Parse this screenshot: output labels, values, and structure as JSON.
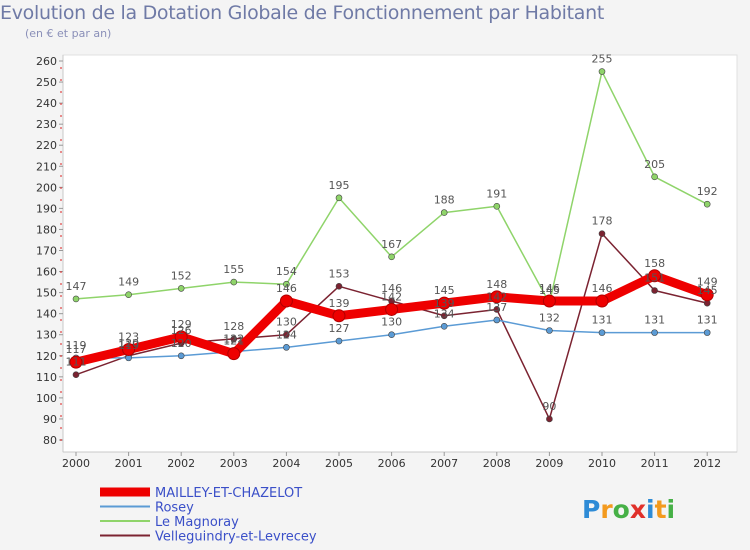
{
  "chart_data": {
    "type": "line",
    "title": "Evolution de la Dotation Globale de Fonctionnement par Habitant",
    "subtitle": "(en € et par an)",
    "xlabel": "",
    "ylabel": "",
    "ylim": [
      80,
      260
    ],
    "ytick_step": 10,
    "categories": [
      "2000",
      "2001",
      "2002",
      "2003",
      "2004",
      "2005",
      "2006",
      "2007",
      "2008",
      "2009",
      "2010",
      "2011",
      "2012"
    ],
    "series": [
      {
        "name": "MAILLEY-ET-CHAZELOT",
        "color": "#ee0000",
        "values": [
          117,
          123,
          129,
          121,
          146,
          139,
          142,
          145,
          148,
          146,
          146,
          158,
          149
        ]
      },
      {
        "name": "Rosey",
        "color": "#5b9bd5",
        "values": [
          119,
          119,
          120,
          122,
          124,
          127,
          130,
          134,
          137,
          132,
          131,
          131,
          131
        ]
      },
      {
        "name": "Le Magnoray",
        "color": "#8fd46a",
        "values": [
          147,
          149,
          152,
          155,
          154,
          195,
          167,
          188,
          191,
          145,
          255,
          205,
          192
        ]
      },
      {
        "name": "Velleguindry-et-Levrecey",
        "color": "#7b2331",
        "values": [
          111,
          120,
          126,
          128,
          130,
          153,
          146,
          139,
          142,
          90,
          178,
          151,
          145
        ]
      }
    ],
    "data_labels": {
      "MAILLEY-ET-CHAZELOT": [
        "117",
        "123",
        "129",
        "121",
        "146",
        "139",
        "142",
        "145",
        "148",
        "146",
        "146",
        "158",
        "149"
      ],
      "Rosey": [
        "119",
        "119",
        "120",
        "122",
        "124",
        "127",
        "130",
        "134",
        "137",
        "132",
        "131",
        "131",
        "131"
      ],
      "Le Magnoray": [
        "147",
        "149",
        "152",
        "155",
        "154",
        "195",
        "167",
        "188",
        "191",
        "145",
        "255",
        "205",
        "192"
      ],
      "Velleguindry-et-Levrecey": [
        "111",
        "120",
        "126",
        "128",
        "130",
        "153",
        "146",
        "139",
        "142",
        "90",
        "178",
        "151",
        "145"
      ]
    },
    "grid": false,
    "legend_position": "bottom-left"
  },
  "logo": {
    "text": "Proxiti"
  }
}
